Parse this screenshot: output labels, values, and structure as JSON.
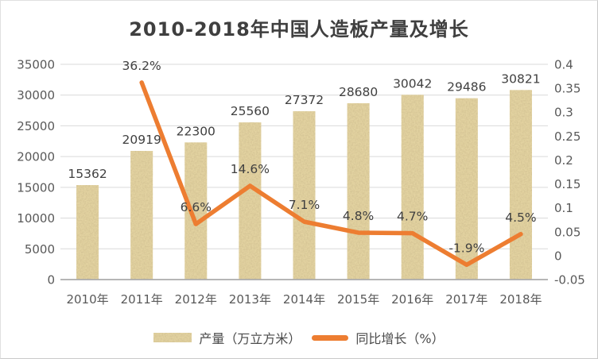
{
  "header": {
    "title": "2010-2018年中国人造板产量及增长"
  },
  "legend": {
    "bar_label": "产量（万立方米）",
    "line_label": "同比增长（%）"
  },
  "colors": {
    "bar_base": "#e3d3a1",
    "bar_speckle_rgb": "0.63 0.52 0.28",
    "line": "#ED7D31",
    "grid": "#D9D9D9",
    "axis_line": "#ABABAB",
    "text_axis": "#595959",
    "text_label": "#404040",
    "title": "#3F3F3F"
  },
  "chart_data": {
    "type": "combo-bar-line",
    "title": "2010-2018年中国人造板产量及增长",
    "categories": [
      "2010年",
      "2011年",
      "2012年",
      "2013年",
      "2014年",
      "2015年",
      "2016年",
      "2017年",
      "2018年"
    ],
    "series": [
      {
        "name": "产量（万立方米）",
        "type": "bar",
        "axis": "left",
        "values": [
          15362,
          20919,
          22300,
          25560,
          27372,
          28680,
          30042,
          29486,
          30821
        ],
        "labels": [
          "15362",
          "20919",
          "22300",
          "25560",
          "27372",
          "28680",
          "30042",
          "29486",
          "30821"
        ]
      },
      {
        "name": "同比增长（%）",
        "type": "line",
        "axis": "right",
        "values": [
          null,
          0.362,
          0.066,
          0.146,
          0.071,
          0.048,
          0.047,
          -0.019,
          0.045
        ],
        "labels": [
          null,
          "36.2%",
          "6.6%",
          "14.6%",
          "7.1%",
          "4.8%",
          "4.7%",
          "-1.9%",
          "4.5%"
        ]
      }
    ],
    "left_axis": {
      "min": 0,
      "max": 35000,
      "tick_labels": [
        "35000",
        "30000",
        "25000",
        "20000",
        "15000",
        "10000",
        "5000",
        "0"
      ],
      "tick_values": [
        35000,
        30000,
        25000,
        20000,
        15000,
        10000,
        5000,
        0
      ]
    },
    "right_axis": {
      "min": -0.05,
      "max": 0.4,
      "tick_labels": [
        "0.4",
        "0.35",
        "0.3",
        "0.25",
        "0.2",
        "0.15",
        "0.1",
        "0.05",
        "0",
        "-0.05"
      ],
      "tick_values": [
        0.4,
        0.35,
        0.3,
        0.25,
        0.2,
        0.15,
        0.1,
        0.05,
        0,
        -0.05
      ]
    },
    "grid": "horizontal",
    "legend_position": "bottom"
  }
}
